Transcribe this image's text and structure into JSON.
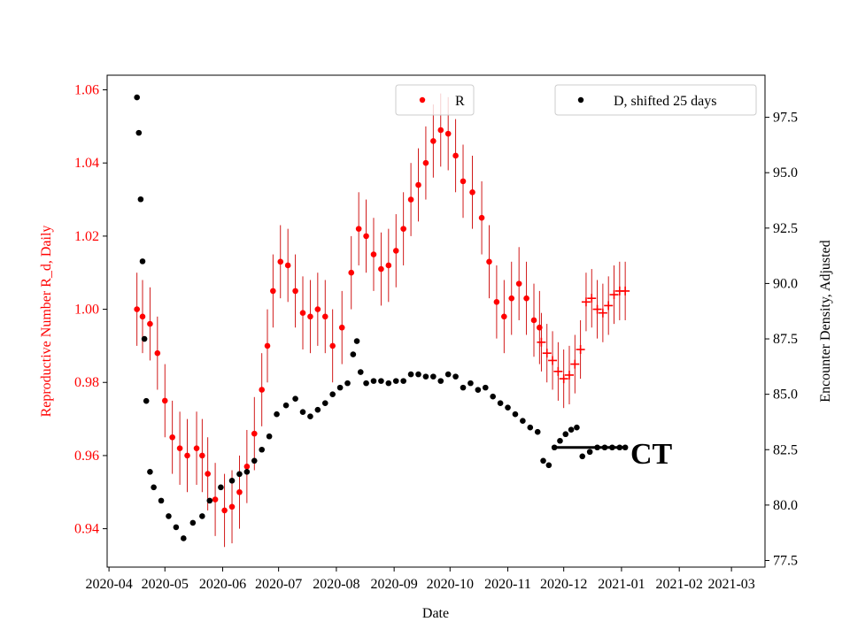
{
  "chart_data": {
    "type": "scatter",
    "xlabel": "Date",
    "ylabel_left": "Reproductive Number R_d, Daily",
    "ylabel_right": "Encounter Density, Adjusted",
    "annotation": "CT",
    "left_axis_color": "#ff0000",
    "right_axis_color": "#000000",
    "x_ticks": [
      "2020-04",
      "2020-05",
      "2020-06",
      "2020-07",
      "2020-08",
      "2020-09",
      "2020-10",
      "2020-11",
      "2020-12",
      "2021-01",
      "2021-02",
      "2021-03"
    ],
    "x_tick_days": [
      0,
      30,
      61,
      91,
      122,
      153,
      183,
      214,
      244,
      275,
      306,
      334
    ],
    "xlim_days": [
      -1,
      352
    ],
    "ylim_left": [
      0.9295,
      1.064
    ],
    "ylim_right": [
      77.2,
      99.4
    ],
    "yticks_left": [
      "0.94",
      "0.96",
      "0.98",
      "1.00",
      "1.02",
      "1.04",
      "1.06"
    ],
    "yticks_right": [
      "77.5",
      "80.0",
      "82.5",
      "85.0",
      "87.5",
      "90.0",
      "92.5",
      "95.0",
      "97.5"
    ],
    "legend_R": "R",
    "legend_D": "D, shifted 25 days",
    "series_R": {
      "name": "R",
      "color": "#ff0000",
      "marker": "circle",
      "errorbar_halfwidth": 0.01,
      "points": [
        [
          15,
          1.0
        ],
        [
          18,
          0.998
        ],
        [
          22,
          0.996
        ],
        [
          26,
          0.988
        ],
        [
          30,
          0.975
        ],
        [
          34,
          0.965
        ],
        [
          38,
          0.962
        ],
        [
          42,
          0.96
        ],
        [
          47,
          0.962
        ],
        [
          50,
          0.96
        ],
        [
          53,
          0.955
        ],
        [
          57,
          0.948
        ],
        [
          62,
          0.945
        ],
        [
          66,
          0.946
        ],
        [
          70,
          0.95
        ],
        [
          74,
          0.957
        ],
        [
          78,
          0.966
        ],
        [
          82,
          0.978
        ],
        [
          85,
          0.99
        ],
        [
          88,
          1.005
        ],
        [
          92,
          1.013
        ],
        [
          96,
          1.012
        ],
        [
          100,
          1.005
        ],
        [
          104,
          0.999
        ],
        [
          108,
          0.998
        ],
        [
          112,
          1.0
        ],
        [
          116,
          0.998
        ],
        [
          120,
          0.99
        ],
        [
          125,
          0.995
        ],
        [
          130,
          1.01
        ],
        [
          134,
          1.022
        ],
        [
          138,
          1.02
        ],
        [
          142,
          1.015
        ],
        [
          146,
          1.011
        ],
        [
          150,
          1.012
        ],
        [
          154,
          1.016
        ],
        [
          158,
          1.022
        ],
        [
          162,
          1.03
        ],
        [
          166,
          1.034
        ],
        [
          170,
          1.04
        ],
        [
          174,
          1.046
        ],
        [
          178,
          1.049
        ],
        [
          182,
          1.048
        ],
        [
          186,
          1.042
        ],
        [
          190,
          1.035
        ],
        [
          195,
          1.032
        ],
        [
          200,
          1.025
        ],
        [
          204,
          1.013
        ],
        [
          208,
          1.002
        ],
        [
          212,
          0.998
        ],
        [
          216,
          1.003
        ],
        [
          220,
          1.007
        ],
        [
          224,
          1.003
        ],
        [
          228,
          0.997
        ],
        [
          231,
          0.995
        ]
      ]
    },
    "series_R_cross": {
      "name": "R (crosses)",
      "color": "#ff0000",
      "marker": "plus",
      "errorbar_halfwidth": 0.008,
      "points": [
        [
          232,
          0.991
        ],
        [
          235,
          0.988
        ],
        [
          238,
          0.986
        ],
        [
          241,
          0.983
        ],
        [
          244,
          0.981
        ],
        [
          247,
          0.982
        ],
        [
          250,
          0.985
        ],
        [
          253,
          0.989
        ],
        [
          256,
          1.002
        ],
        [
          259,
          1.003
        ],
        [
          262,
          1.0
        ],
        [
          265,
          0.999
        ],
        [
          268,
          1.001
        ],
        [
          271,
          1.004
        ],
        [
          274,
          1.005
        ],
        [
          277,
          1.005
        ]
      ]
    },
    "series_D": {
      "name": "D, shifted 25 days",
      "color": "#000000",
      "marker": "circle",
      "points": [
        [
          15,
          98.4
        ],
        [
          16,
          96.8
        ],
        [
          17,
          93.8
        ],
        [
          18,
          91.0
        ],
        [
          19,
          87.5
        ],
        [
          20,
          84.7
        ],
        [
          22,
          81.5
        ],
        [
          24,
          80.8
        ],
        [
          28,
          80.2
        ],
        [
          32,
          79.5
        ],
        [
          36,
          79.0
        ],
        [
          40,
          78.5
        ],
        [
          45,
          79.2
        ],
        [
          50,
          79.5
        ],
        [
          54,
          80.2
        ],
        [
          60,
          80.8
        ],
        [
          66,
          81.1
        ],
        [
          70,
          81.4
        ],
        [
          74,
          81.5
        ],
        [
          78,
          82.0
        ],
        [
          82,
          82.5
        ],
        [
          86,
          83.1
        ],
        [
          90,
          84.1
        ],
        [
          95,
          84.5
        ],
        [
          100,
          84.8
        ],
        [
          104,
          84.2
        ],
        [
          108,
          84.0
        ],
        [
          112,
          84.3
        ],
        [
          116,
          84.6
        ],
        [
          120,
          85.0
        ],
        [
          124,
          85.3
        ],
        [
          128,
          85.5
        ],
        [
          131,
          86.8
        ],
        [
          133,
          87.4
        ],
        [
          135,
          86.0
        ],
        [
          138,
          85.5
        ],
        [
          142,
          85.6
        ],
        [
          146,
          85.6
        ],
        [
          150,
          85.5
        ],
        [
          154,
          85.6
        ],
        [
          158,
          85.6
        ],
        [
          162,
          85.9
        ],
        [
          166,
          85.9
        ],
        [
          170,
          85.8
        ],
        [
          174,
          85.8
        ],
        [
          178,
          85.6
        ],
        [
          182,
          85.9
        ],
        [
          186,
          85.8
        ],
        [
          190,
          85.3
        ],
        [
          194,
          85.5
        ],
        [
          198,
          85.2
        ],
        [
          202,
          85.3
        ],
        [
          206,
          84.9
        ],
        [
          210,
          84.6
        ],
        [
          214,
          84.4
        ],
        [
          218,
          84.1
        ],
        [
          222,
          83.8
        ],
        [
          226,
          83.5
        ],
        [
          230,
          83.3
        ],
        [
          233,
          82.0
        ],
        [
          236,
          81.8
        ],
        [
          239,
          82.6
        ],
        [
          242,
          82.9
        ],
        [
          245,
          83.2
        ],
        [
          248,
          83.4
        ],
        [
          251,
          83.5
        ],
        [
          254,
          82.2
        ],
        [
          258,
          82.4
        ],
        [
          262,
          82.6
        ],
        [
          266,
          82.6
        ],
        [
          270,
          82.6
        ],
        [
          274,
          82.6
        ],
        [
          277,
          82.6
        ]
      ]
    }
  }
}
